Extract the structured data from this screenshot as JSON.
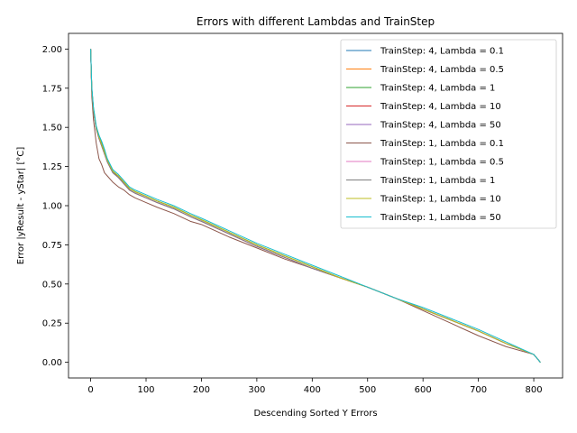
{
  "chart_data": {
    "type": "line",
    "title": "Errors with different Lambdas and TrainStep",
    "xlabel": "Descending Sorted Y Errors",
    "ylabel": "Error |yResult - yStar| [°C]",
    "xlim": [
      -40,
      852
    ],
    "ylim": [
      -0.1,
      2.1
    ],
    "xticks": [
      0,
      100,
      200,
      300,
      400,
      500,
      600,
      700,
      800
    ],
    "yticks": [
      0.0,
      0.25,
      0.5,
      0.75,
      1.0,
      1.25,
      1.5,
      1.75,
      2.0
    ],
    "xtick_labels": [
      "0",
      "100",
      "200",
      "300",
      "400",
      "500",
      "600",
      "700",
      "800"
    ],
    "ytick_labels": [
      "0.00",
      "0.25",
      "0.50",
      "0.75",
      "1.00",
      "1.25",
      "1.50",
      "1.75",
      "2.00"
    ],
    "grid": false,
    "legend_position": "top-right",
    "x": [
      0,
      2,
      5,
      10,
      15,
      20,
      25,
      30,
      40,
      50,
      60,
      70,
      80,
      100,
      120,
      150,
      180,
      200,
      250,
      300,
      350,
      400,
      450,
      500,
      550,
      600,
      650,
      700,
      750,
      800,
      812
    ],
    "series": [
      {
        "name": "TrainStep: 4, Lambda = 0.1",
        "color": "#1f77b4",
        "values": [
          2.0,
          1.75,
          1.62,
          1.5,
          1.45,
          1.4,
          1.35,
          1.3,
          1.22,
          1.19,
          1.15,
          1.11,
          1.09,
          1.06,
          1.03,
          0.99,
          0.94,
          0.91,
          0.83,
          0.75,
          0.68,
          0.61,
          0.54,
          0.48,
          0.41,
          0.34,
          0.27,
          0.2,
          0.12,
          0.05,
          0.0
        ]
      },
      {
        "name": "TrainStep: 4, Lambda = 0.5",
        "color": "#ff7f0e",
        "values": [
          2.0,
          1.75,
          1.62,
          1.5,
          1.44,
          1.39,
          1.34,
          1.29,
          1.22,
          1.19,
          1.15,
          1.11,
          1.09,
          1.06,
          1.03,
          0.99,
          0.94,
          0.91,
          0.83,
          0.75,
          0.68,
          0.61,
          0.54,
          0.48,
          0.41,
          0.34,
          0.27,
          0.2,
          0.12,
          0.05,
          0.0
        ]
      },
      {
        "name": "TrainStep: 4, Lambda = 1",
        "color": "#2ca02c",
        "values": [
          2.0,
          1.74,
          1.61,
          1.49,
          1.44,
          1.39,
          1.34,
          1.29,
          1.22,
          1.18,
          1.15,
          1.11,
          1.09,
          1.06,
          1.03,
          0.99,
          0.94,
          0.91,
          0.83,
          0.75,
          0.68,
          0.61,
          0.54,
          0.48,
          0.41,
          0.34,
          0.27,
          0.2,
          0.12,
          0.05,
          0.0
        ]
      },
      {
        "name": "TrainStep: 4, Lambda = 10",
        "color": "#d62728",
        "values": [
          2.0,
          1.74,
          1.61,
          1.49,
          1.43,
          1.38,
          1.33,
          1.28,
          1.21,
          1.18,
          1.14,
          1.1,
          1.08,
          1.05,
          1.02,
          0.98,
          0.93,
          0.9,
          0.82,
          0.74,
          0.67,
          0.6,
          0.54,
          0.48,
          0.41,
          0.34,
          0.27,
          0.2,
          0.12,
          0.05,
          0.0
        ]
      },
      {
        "name": "TrainStep: 4, Lambda = 50",
        "color": "#9467bd",
        "values": [
          2.0,
          1.74,
          1.61,
          1.49,
          1.43,
          1.38,
          1.33,
          1.28,
          1.21,
          1.18,
          1.14,
          1.1,
          1.08,
          1.05,
          1.02,
          0.98,
          0.93,
          0.9,
          0.82,
          0.74,
          0.67,
          0.6,
          0.54,
          0.48,
          0.41,
          0.34,
          0.27,
          0.2,
          0.12,
          0.05,
          0.0
        ]
      },
      {
        "name": "TrainStep: 1, Lambda = 0.1",
        "color": "#8c564b",
        "values": [
          2.0,
          1.7,
          1.55,
          1.4,
          1.3,
          1.26,
          1.21,
          1.19,
          1.15,
          1.12,
          1.1,
          1.07,
          1.05,
          1.02,
          0.99,
          0.95,
          0.9,
          0.88,
          0.8,
          0.73,
          0.66,
          0.6,
          0.54,
          0.48,
          0.41,
          0.33,
          0.25,
          0.17,
          0.1,
          0.05,
          0.0
        ]
      },
      {
        "name": "TrainStep: 1, Lambda = 0.5",
        "color": "#e377c2",
        "values": [
          2.0,
          1.74,
          1.61,
          1.49,
          1.43,
          1.38,
          1.33,
          1.28,
          1.21,
          1.18,
          1.14,
          1.1,
          1.08,
          1.05,
          1.02,
          0.98,
          0.93,
          0.9,
          0.82,
          0.74,
          0.67,
          0.6,
          0.54,
          0.48,
          0.41,
          0.34,
          0.27,
          0.2,
          0.12,
          0.05,
          0.0
        ]
      },
      {
        "name": "TrainStep: 1, Lambda = 1",
        "color": "#7f7f7f",
        "values": [
          2.0,
          1.74,
          1.61,
          1.49,
          1.43,
          1.38,
          1.33,
          1.28,
          1.21,
          1.18,
          1.14,
          1.1,
          1.08,
          1.05,
          1.02,
          0.98,
          0.93,
          0.9,
          0.82,
          0.74,
          0.67,
          0.6,
          0.54,
          0.48,
          0.41,
          0.34,
          0.27,
          0.2,
          0.12,
          0.05,
          0.0
        ]
      },
      {
        "name": "TrainStep: 1, Lambda = 10",
        "color": "#bcbd22",
        "values": [
          2.0,
          1.75,
          1.62,
          1.5,
          1.44,
          1.39,
          1.34,
          1.29,
          1.22,
          1.19,
          1.15,
          1.11,
          1.09,
          1.06,
          1.03,
          0.99,
          0.94,
          0.91,
          0.83,
          0.75,
          0.68,
          0.61,
          0.54,
          0.48,
          0.41,
          0.34,
          0.27,
          0.2,
          0.12,
          0.05,
          0.0
        ]
      },
      {
        "name": "TrainStep: 1, Lambda = 50",
        "color": "#17becf",
        "values": [
          2.0,
          1.76,
          1.63,
          1.51,
          1.45,
          1.41,
          1.36,
          1.3,
          1.23,
          1.2,
          1.16,
          1.12,
          1.1,
          1.07,
          1.04,
          1.0,
          0.95,
          0.92,
          0.84,
          0.76,
          0.69,
          0.62,
          0.55,
          0.48,
          0.41,
          0.35,
          0.28,
          0.21,
          0.13,
          0.05,
          0.0
        ]
      }
    ]
  }
}
